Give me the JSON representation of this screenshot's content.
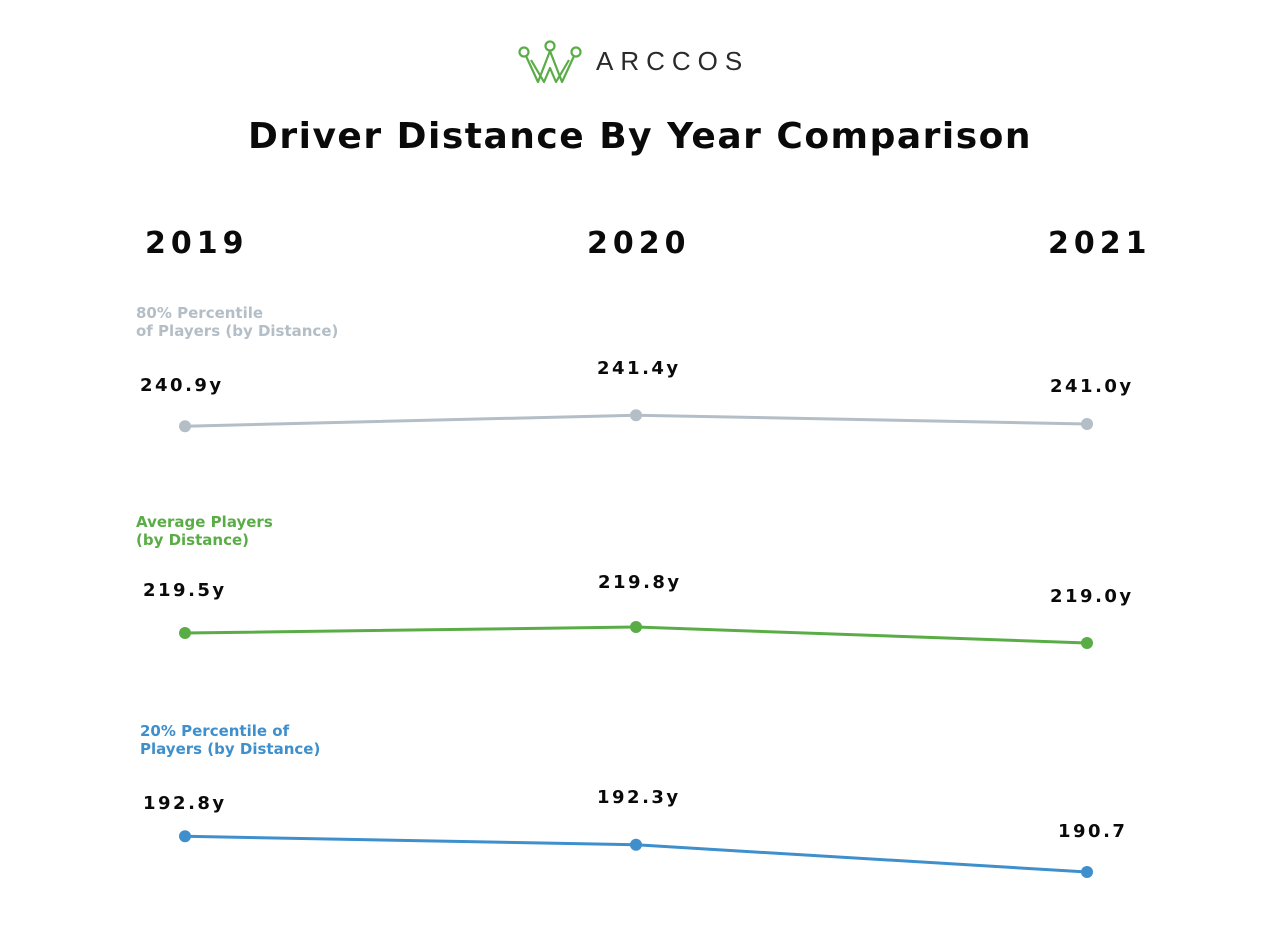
{
  "brand": {
    "name": "ARCCOS",
    "color": "#5aad46",
    "text_color": "#2a2a2a"
  },
  "chart_data": {
    "type": "line",
    "title": "Driver Distance By Year Comparison",
    "categories": [
      "2019",
      "2020",
      "2021"
    ],
    "series": [
      {
        "name": "80% Percentile\nof Players (by Distance)",
        "color": "#b3bec7",
        "values": [
          240.9,
          241.4,
          241.0
        ],
        "labels": [
          "240.9y",
          "241.4y",
          "241.0y"
        ]
      },
      {
        "name": "Average Players\n(by Distance)",
        "color": "#5aad46",
        "values": [
          219.5,
          219.8,
          219.0
        ],
        "labels": [
          "219.5y",
          "219.8y",
          "219.0y"
        ]
      },
      {
        "name": "20% Percentile of\nPlayers (by Distance)",
        "color": "#3e8fcc",
        "values": [
          192.8,
          192.3,
          190.7
        ],
        "labels": [
          "192.8y",
          "192.3y",
          "190.7"
        ]
      }
    ]
  }
}
